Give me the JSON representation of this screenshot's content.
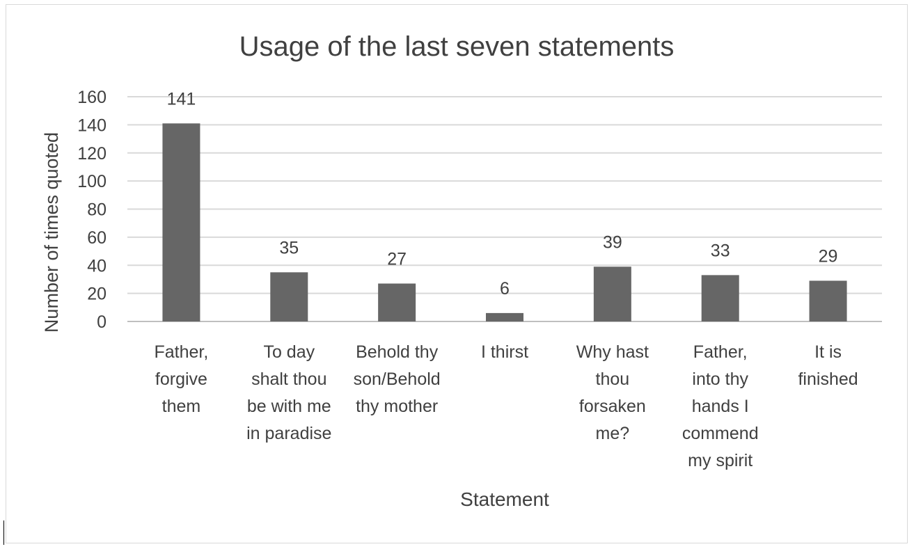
{
  "chart_data": {
    "type": "bar",
    "title": "Usage of the last seven statements",
    "xlabel": "Statement",
    "ylabel": "Number of times quoted",
    "ylim": [
      0,
      160
    ],
    "ytick_step": 20,
    "yticks": [
      "0",
      "20",
      "40",
      "60",
      "80",
      "100",
      "120",
      "140",
      "160"
    ],
    "grid": true,
    "legend": "none",
    "bar_color": "#666666",
    "categories": [
      [
        "Father,",
        "forgive",
        "them"
      ],
      [
        "To day",
        "shalt thou",
        "be with me",
        "in paradise"
      ],
      [
        "Behold thy",
        "son/Behold",
        "thy mother"
      ],
      [
        "I thirst"
      ],
      [
        "Why hast",
        "thou",
        "forsaken",
        "me?"
      ],
      [
        "Father,",
        "into thy",
        "hands I",
        "commend",
        "my spirit"
      ],
      [
        "It is",
        "finished"
      ]
    ],
    "values": [
      141,
      35,
      27,
      6,
      39,
      33,
      29
    ],
    "data_labels": [
      "141",
      "35",
      "27",
      "6",
      "39",
      "33",
      "29"
    ]
  }
}
